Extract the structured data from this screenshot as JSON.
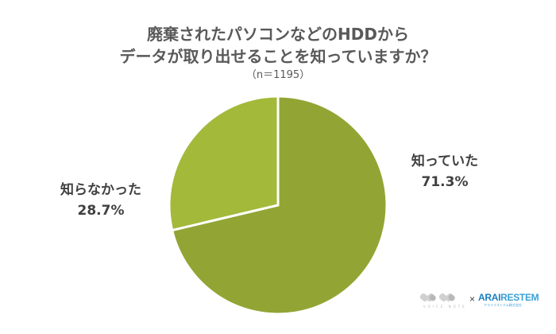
{
  "chart_data": {
    "type": "pie",
    "title": "廃棄されたパソコンなどのHDDからデータが取り出せることを知っていますか？",
    "title_lines": [
      "廃棄されたパソコンなどのHDDから",
      "データが取り出せることを知っていますか？"
    ],
    "subtitle": "（n＝1195）",
    "categories": [
      "知っていた",
      "知らなかった"
    ],
    "values": [
      71.3,
      28.7
    ],
    "unit": "%",
    "colors": [
      "#92a534",
      "#a3b93a"
    ],
    "data_labels": [
      "71.3%",
      "28.7%"
    ],
    "start_angle": "12 o'clock, clockwise",
    "legend": "none (direct labels)"
  },
  "labels": {
    "known": {
      "name": "知っていた",
      "value": "71.3%"
    },
    "unknown": {
      "name": "知らなかった",
      "value": "28.7%"
    }
  },
  "logo": {
    "left_mark": "VOICE NOTE",
    "separator": "×",
    "brand_part1": "ARAI",
    "brand_part2": "RESTEM",
    "brand_sub": "アライリストテム株式会社"
  }
}
